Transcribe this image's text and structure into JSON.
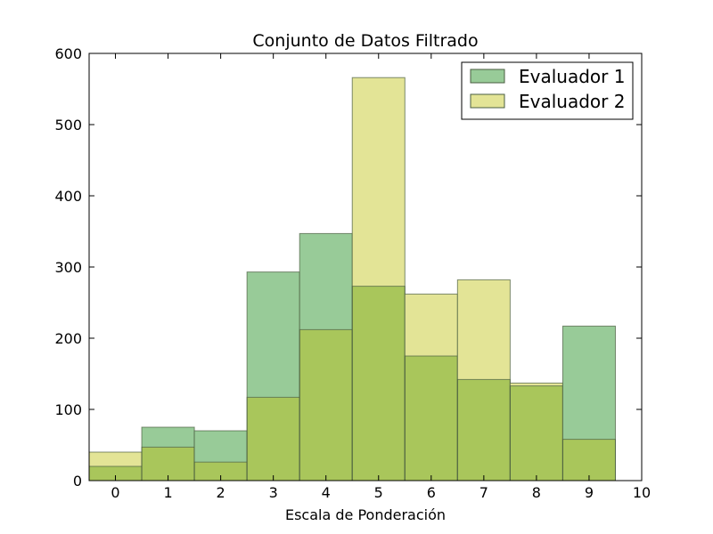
{
  "chart_data": {
    "type": "bar",
    "title": "Conjunto de Datos Filtrado",
    "xlabel": "Escala de Ponderación",
    "ylabel": "",
    "xlim": [
      -0.5,
      10
    ],
    "ylim": [
      0,
      600
    ],
    "xticks": [
      "0",
      "1",
      "2",
      "3",
      "4",
      "5",
      "6",
      "7",
      "8",
      "9",
      "10"
    ],
    "yticks": [
      "0",
      "100",
      "200",
      "300",
      "400",
      "500",
      "600"
    ],
    "categories": [
      0,
      1,
      2,
      3,
      4,
      5,
      6,
      7,
      8,
      9
    ],
    "series": [
      {
        "name": "Evaluador 1",
        "color": "#98cb98",
        "values": [
          20,
          75,
          70,
          293,
          347,
          273,
          175,
          142,
          133,
          217
        ]
      },
      {
        "name": "Evaluador 2",
        "color": "#e3e496",
        "values": [
          40,
          47,
          26,
          117,
          212,
          566,
          262,
          282,
          137,
          58
        ]
      }
    ],
    "overlap_color": "#a9c65b",
    "grid": false,
    "legend_position": "top-right"
  }
}
